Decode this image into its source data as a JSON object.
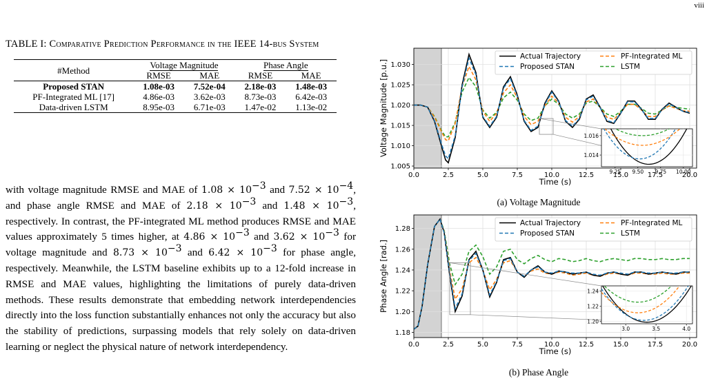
{
  "page_number": "viii",
  "table": {
    "caption": "TABLE I: Comparative Prediction Performance in the IEEE 14-bus System",
    "header_method": "#Method",
    "header_group1": "Voltage Magnitude",
    "header_group2": "Phase Angle",
    "subheaders": [
      "RMSE",
      "MAE",
      "RMSE",
      "MAE"
    ],
    "rows": [
      {
        "method": "Proposed STAN",
        "values": [
          "1.08e-03",
          "7.52e-04",
          "2.18e-03",
          "1.48e-03"
        ]
      },
      {
        "method": "PF-Integrated ML [17]",
        "values": [
          "4.86e-03",
          "3.62e-03",
          "8.73e-03",
          "6.42e-03"
        ]
      },
      {
        "method": "Data-driven LSTM",
        "values": [
          "8.95e-03",
          "6.71e-03",
          "1.47e-02",
          "1.13e-02"
        ]
      }
    ]
  },
  "paragraph": {
    "t1": "with voltage magnitude RMSE and MAE of ",
    "m1": "1.08 × 10",
    "e1": "−3",
    "t2": " and ",
    "m2": "7.52 × 10",
    "e2": "−4",
    "t3": ", and phase angle RMSE and MAE of ",
    "m3": "2.18 × 10",
    "e3": "−3",
    "t4": " and ",
    "m4": "1.48 × 10",
    "e4": "−3",
    "t5": ", respectively. In contrast, the PF-integrated ML method produces RMSE and MAE values approximately 5 times higher, at ",
    "m5": "4.86 × 10",
    "e5": "−3",
    "t6": " and ",
    "m6": "3.62 × 10",
    "e6": "−3",
    "t7": " for voltage magnitude and ",
    "m7": "8.73 × 10",
    "e7": "−3",
    "t8": " and ",
    "m8": "6.42 × 10",
    "e8": "−3",
    "t9": " for phase angle, respectively. Meanwhile, the LSTM baseline exhibits up to a 12-fold increase in RMSE and MAE values, highlighting the limitations of purely data-driven methods. These results demonstrate that embedding network interdependencies directly into the loss function substantially enhances not only the accuracy but also the stability of predictions, surpassing models that rely solely on data-driven learning or neglect the physical nature of network interdependency."
  },
  "colors": {
    "actual": "#000000",
    "stan": "#1f77b4",
    "pf": "#ff7f0e",
    "lstm": "#2ca02c",
    "shade": "#d3d3d3"
  },
  "chart_data": [
    {
      "type": "line",
      "subcaption": "(a) Voltage Magnitude",
      "xlabel": "Time (s)",
      "ylabel": "Voltage Magnitude [p.u.]",
      "xlim": [
        0,
        20.5
      ],
      "ylim": [
        1.0045,
        1.034
      ],
      "xticks": [
        "0.0",
        "2.5",
        "5.0",
        "7.5",
        "10.0",
        "12.5",
        "15.0",
        "17.5",
        "20.0"
      ],
      "yticks": [
        "1.005",
        "1.010",
        "1.015",
        "1.020",
        "1.025",
        "1.030"
      ],
      "shaded_region": [
        0,
        2
      ],
      "grid": true,
      "legend_placement": "top-right",
      "series": [
        {
          "name": "Actual Trajectory",
          "style": "solid",
          "x": [
            0,
            0.5,
            1,
            1.5,
            2,
            2.3,
            2.5,
            3,
            3.5,
            4,
            4.5,
            5,
            5.5,
            6,
            6.5,
            7,
            7.5,
            8,
            8.5,
            9,
            9.5,
            10,
            10.5,
            11,
            11.5,
            12,
            12.5,
            13,
            13.5,
            14,
            14.5,
            15,
            15.5,
            16,
            16.5,
            17,
            17.5,
            18,
            18.5,
            19,
            19.5,
            20
          ],
          "y": [
            1.02,
            1.02,
            1.0195,
            1.016,
            1.01,
            1.0065,
            1.0058,
            1.012,
            1.025,
            1.0325,
            1.028,
            1.017,
            1.0145,
            1.017,
            1.0245,
            1.027,
            1.0225,
            1.016,
            1.0135,
            1.0145,
            1.0205,
            1.0235,
            1.021,
            1.016,
            1.0145,
            1.0165,
            1.0215,
            1.0225,
            1.0195,
            1.016,
            1.0155,
            1.018,
            1.021,
            1.021,
            1.019,
            1.0165,
            1.0165,
            1.019,
            1.0205,
            1.0195,
            1.0185,
            1.018
          ]
        },
        {
          "name": "Proposed STAN",
          "style": "dashed",
          "x": [
            0,
            0.5,
            1,
            1.5,
            2,
            2.3,
            2.5,
            3,
            3.5,
            4,
            4.5,
            5,
            5.5,
            6,
            6.5,
            7,
            7.5,
            8,
            8.5,
            9,
            9.5,
            10,
            10.5,
            11,
            11.5,
            12,
            12.5,
            13,
            13.5,
            14,
            14.5,
            15,
            15.5,
            16,
            16.5,
            17,
            17.5,
            18,
            18.5,
            19,
            19.5,
            20
          ],
          "y": [
            1.02,
            1.02,
            1.0195,
            1.0162,
            1.0105,
            1.0075,
            1.0068,
            1.0125,
            1.0245,
            1.0315,
            1.0275,
            1.0172,
            1.0148,
            1.0172,
            1.0242,
            1.0265,
            1.0222,
            1.0162,
            1.0138,
            1.0148,
            1.0202,
            1.0232,
            1.0208,
            1.0162,
            1.0148,
            1.0167,
            1.0213,
            1.0222,
            1.0194,
            1.0162,
            1.0157,
            1.0181,
            1.0208,
            1.0208,
            1.0189,
            1.0167,
            1.0167,
            1.0189,
            1.0203,
            1.0194,
            1.0185,
            1.0182
          ]
        },
        {
          "name": "PF-Integrated ML",
          "style": "dashed",
          "x": [
            0,
            0.5,
            1,
            1.5,
            2,
            2.3,
            2.5,
            3,
            3.5,
            4,
            4.5,
            5,
            5.5,
            6,
            6.5,
            7,
            7.5,
            8,
            8.5,
            9,
            9.5,
            10,
            10.5,
            11,
            11.5,
            12,
            12.5,
            13,
            13.5,
            14,
            14.5,
            15,
            15.5,
            16,
            16.5,
            17,
            17.5,
            18,
            18.5,
            19,
            19.5,
            20
          ],
          "y": [
            1.02,
            1.02,
            1.0195,
            1.017,
            1.0135,
            1.0115,
            1.0112,
            1.0155,
            1.0245,
            1.0295,
            1.0262,
            1.0185,
            1.016,
            1.018,
            1.023,
            1.025,
            1.0218,
            1.0172,
            1.0152,
            1.016,
            1.0198,
            1.0222,
            1.0205,
            1.017,
            1.0158,
            1.0172,
            1.0208,
            1.0215,
            1.0195,
            1.017,
            1.0165,
            1.0182,
            1.0202,
            1.0202,
            1.0188,
            1.0172,
            1.0172,
            1.0188,
            1.0198,
            1.0192,
            1.0186,
            1.0185
          ]
        },
        {
          "name": "LSTM",
          "style": "dashed",
          "x": [
            0,
            0.5,
            1,
            1.5,
            2,
            2.3,
            2.5,
            3,
            3.5,
            4,
            4.5,
            5,
            5.5,
            6,
            6.5,
            7,
            7.5,
            8,
            8.5,
            9,
            9.5,
            10,
            10.5,
            11,
            11.5,
            12,
            12.5,
            13,
            13.5,
            14,
            14.5,
            15,
            15.5,
            16,
            16.5,
            17,
            17.5,
            18,
            18.5,
            19,
            19.5,
            20
          ],
          "y": [
            1.02,
            1.02,
            1.0195,
            1.0172,
            1.0138,
            1.0122,
            1.0122,
            1.0158,
            1.0232,
            1.0268,
            1.0245,
            1.0188,
            1.0168,
            1.0182,
            1.0218,
            1.0232,
            1.0212,
            1.0178,
            1.0162,
            1.0168,
            1.0198,
            1.0215,
            1.0202,
            1.0178,
            1.0168,
            1.0178,
            1.0205,
            1.021,
            1.0195,
            1.0178,
            1.0172,
            1.0185,
            1.0202,
            1.0202,
            1.0192,
            1.018,
            1.0178,
            1.0188,
            1.0198,
            1.0195,
            1.0192,
            1.019
          ]
        }
      ],
      "inset": {
        "xlim": [
          9.1,
          10.1
        ],
        "ylim": [
          1.0128,
          1.0167
        ],
        "xticks": [
          "9.25",
          "9.50",
          "9.75",
          "10.00"
        ],
        "yticks": [
          "1.014",
          "1.016"
        ]
      }
    },
    {
      "type": "line",
      "subcaption": "(b) Phase Angle",
      "xlabel": "Time (s)",
      "ylabel": "Phase Angle [rad.]",
      "xlim": [
        0,
        20.5
      ],
      "ylim": [
        1.175,
        1.293
      ],
      "xticks": [
        "0.0",
        "2.5",
        "5.0",
        "7.5",
        "10.0",
        "12.5",
        "15.0",
        "17.5",
        "20.0"
      ],
      "yticks": [
        "1.18",
        "1.20",
        "1.22",
        "1.24",
        "1.26",
        "1.28"
      ],
      "shaded_region": [
        0,
        2
      ],
      "grid": true,
      "legend_placement": "top-right",
      "series": [
        {
          "name": "Actual Trajectory",
          "style": "solid",
          "x": [
            0,
            0.3,
            0.6,
            1,
            1.5,
            1.9,
            2.2,
            2.6,
            3,
            3.5,
            4,
            4.5,
            5,
            5.5,
            6,
            6.5,
            7,
            7.5,
            8,
            8.5,
            9,
            9.5,
            10,
            10.5,
            11,
            11.5,
            12,
            12.5,
            13,
            13.5,
            14,
            14.5,
            15,
            15.5,
            16,
            16.5,
            17,
            17.5,
            18,
            18.5,
            19,
            19.5,
            20
          ],
          "y": [
            1.183,
            1.186,
            1.205,
            1.245,
            1.282,
            1.289,
            1.276,
            1.235,
            1.2,
            1.215,
            1.25,
            1.258,
            1.24,
            1.214,
            1.228,
            1.25,
            1.252,
            1.238,
            1.233,
            1.24,
            1.244,
            1.238,
            1.236,
            1.239,
            1.238,
            1.236,
            1.237,
            1.238,
            1.235,
            1.234,
            1.237,
            1.238,
            1.236,
            1.235,
            1.238,
            1.238,
            1.236,
            1.237,
            1.238,
            1.237,
            1.236,
            1.238,
            1.238
          ]
        },
        {
          "name": "Proposed STAN",
          "style": "dashed",
          "x": [
            0,
            0.3,
            0.6,
            1,
            1.5,
            1.9,
            2.2,
            2.6,
            3,
            3.5,
            4,
            4.5,
            5,
            5.5,
            6,
            6.5,
            7,
            7.5,
            8,
            8.5,
            9,
            9.5,
            10,
            10.5,
            11,
            11.5,
            12,
            12.5,
            13,
            13.5,
            14,
            14.5,
            15,
            15.5,
            16,
            16.5,
            17,
            17.5,
            18,
            18.5,
            19,
            19.5,
            20
          ],
          "y": [
            1.183,
            1.186,
            1.205,
            1.245,
            1.282,
            1.289,
            1.276,
            1.237,
            1.203,
            1.217,
            1.249,
            1.256,
            1.24,
            1.216,
            1.229,
            1.249,
            1.251,
            1.238,
            1.234,
            1.24,
            1.243,
            1.238,
            1.237,
            1.239,
            1.238,
            1.237,
            1.237,
            1.238,
            1.236,
            1.235,
            1.237,
            1.238,
            1.237,
            1.236,
            1.238,
            1.238,
            1.237,
            1.237,
            1.238,
            1.237,
            1.237,
            1.238,
            1.238
          ]
        },
        {
          "name": "PF-Integrated ML",
          "style": "dashed",
          "x": [
            0,
            0.3,
            0.6,
            1,
            1.5,
            1.9,
            2.2,
            2.6,
            3,
            3.5,
            4,
            4.5,
            5,
            5.5,
            6,
            6.5,
            7,
            7.5,
            8,
            8.5,
            9,
            9.5,
            10,
            10.5,
            11,
            11.5,
            12,
            12.5,
            13,
            13.5,
            14,
            14.5,
            15,
            15.5,
            16,
            16.5,
            17,
            17.5,
            18,
            18.5,
            19,
            19.5,
            20
          ],
          "y": [
            1.183,
            1.186,
            1.205,
            1.245,
            1.282,
            1.289,
            1.277,
            1.24,
            1.212,
            1.222,
            1.247,
            1.252,
            1.24,
            1.221,
            1.231,
            1.247,
            1.249,
            1.238,
            1.234,
            1.239,
            1.241,
            1.237,
            1.236,
            1.238,
            1.237,
            1.235,
            1.236,
            1.237,
            1.235,
            1.234,
            1.236,
            1.237,
            1.236,
            1.235,
            1.237,
            1.237,
            1.236,
            1.236,
            1.237,
            1.236,
            1.236,
            1.237,
            1.237
          ]
        },
        {
          "name": "LSTM",
          "style": "dashed",
          "x": [
            0,
            0.3,
            0.6,
            1,
            1.5,
            1.9,
            2.2,
            2.6,
            3,
            3.5,
            4,
            4.5,
            5,
            5.5,
            6,
            6.5,
            7,
            7.5,
            8,
            8.5,
            9,
            9.5,
            10,
            10.5,
            11,
            11.5,
            12,
            12.5,
            13,
            13.5,
            14,
            14.5,
            15,
            15.5,
            16,
            16.5,
            17,
            17.5,
            18,
            18.5,
            19,
            19.5,
            20
          ],
          "y": [
            1.183,
            1.186,
            1.205,
            1.245,
            1.282,
            1.289,
            1.278,
            1.246,
            1.226,
            1.236,
            1.258,
            1.264,
            1.253,
            1.236,
            1.243,
            1.258,
            1.26,
            1.25,
            1.246,
            1.251,
            1.254,
            1.25,
            1.248,
            1.251,
            1.25,
            1.248,
            1.249,
            1.251,
            1.249,
            1.248,
            1.25,
            1.251,
            1.25,
            1.249,
            1.251,
            1.251,
            1.25,
            1.25,
            1.251,
            1.25,
            1.25,
            1.251,
            1.251
          ]
        }
      ],
      "inset": {
        "xlim": [
          2.6,
          4.1
        ],
        "ylim": [
          1.197,
          1.247
        ],
        "xticks": [
          "3.0",
          "3.5",
          "4.0"
        ],
        "yticks": [
          "1.20",
          "1.22",
          "1.24"
        ]
      }
    }
  ]
}
